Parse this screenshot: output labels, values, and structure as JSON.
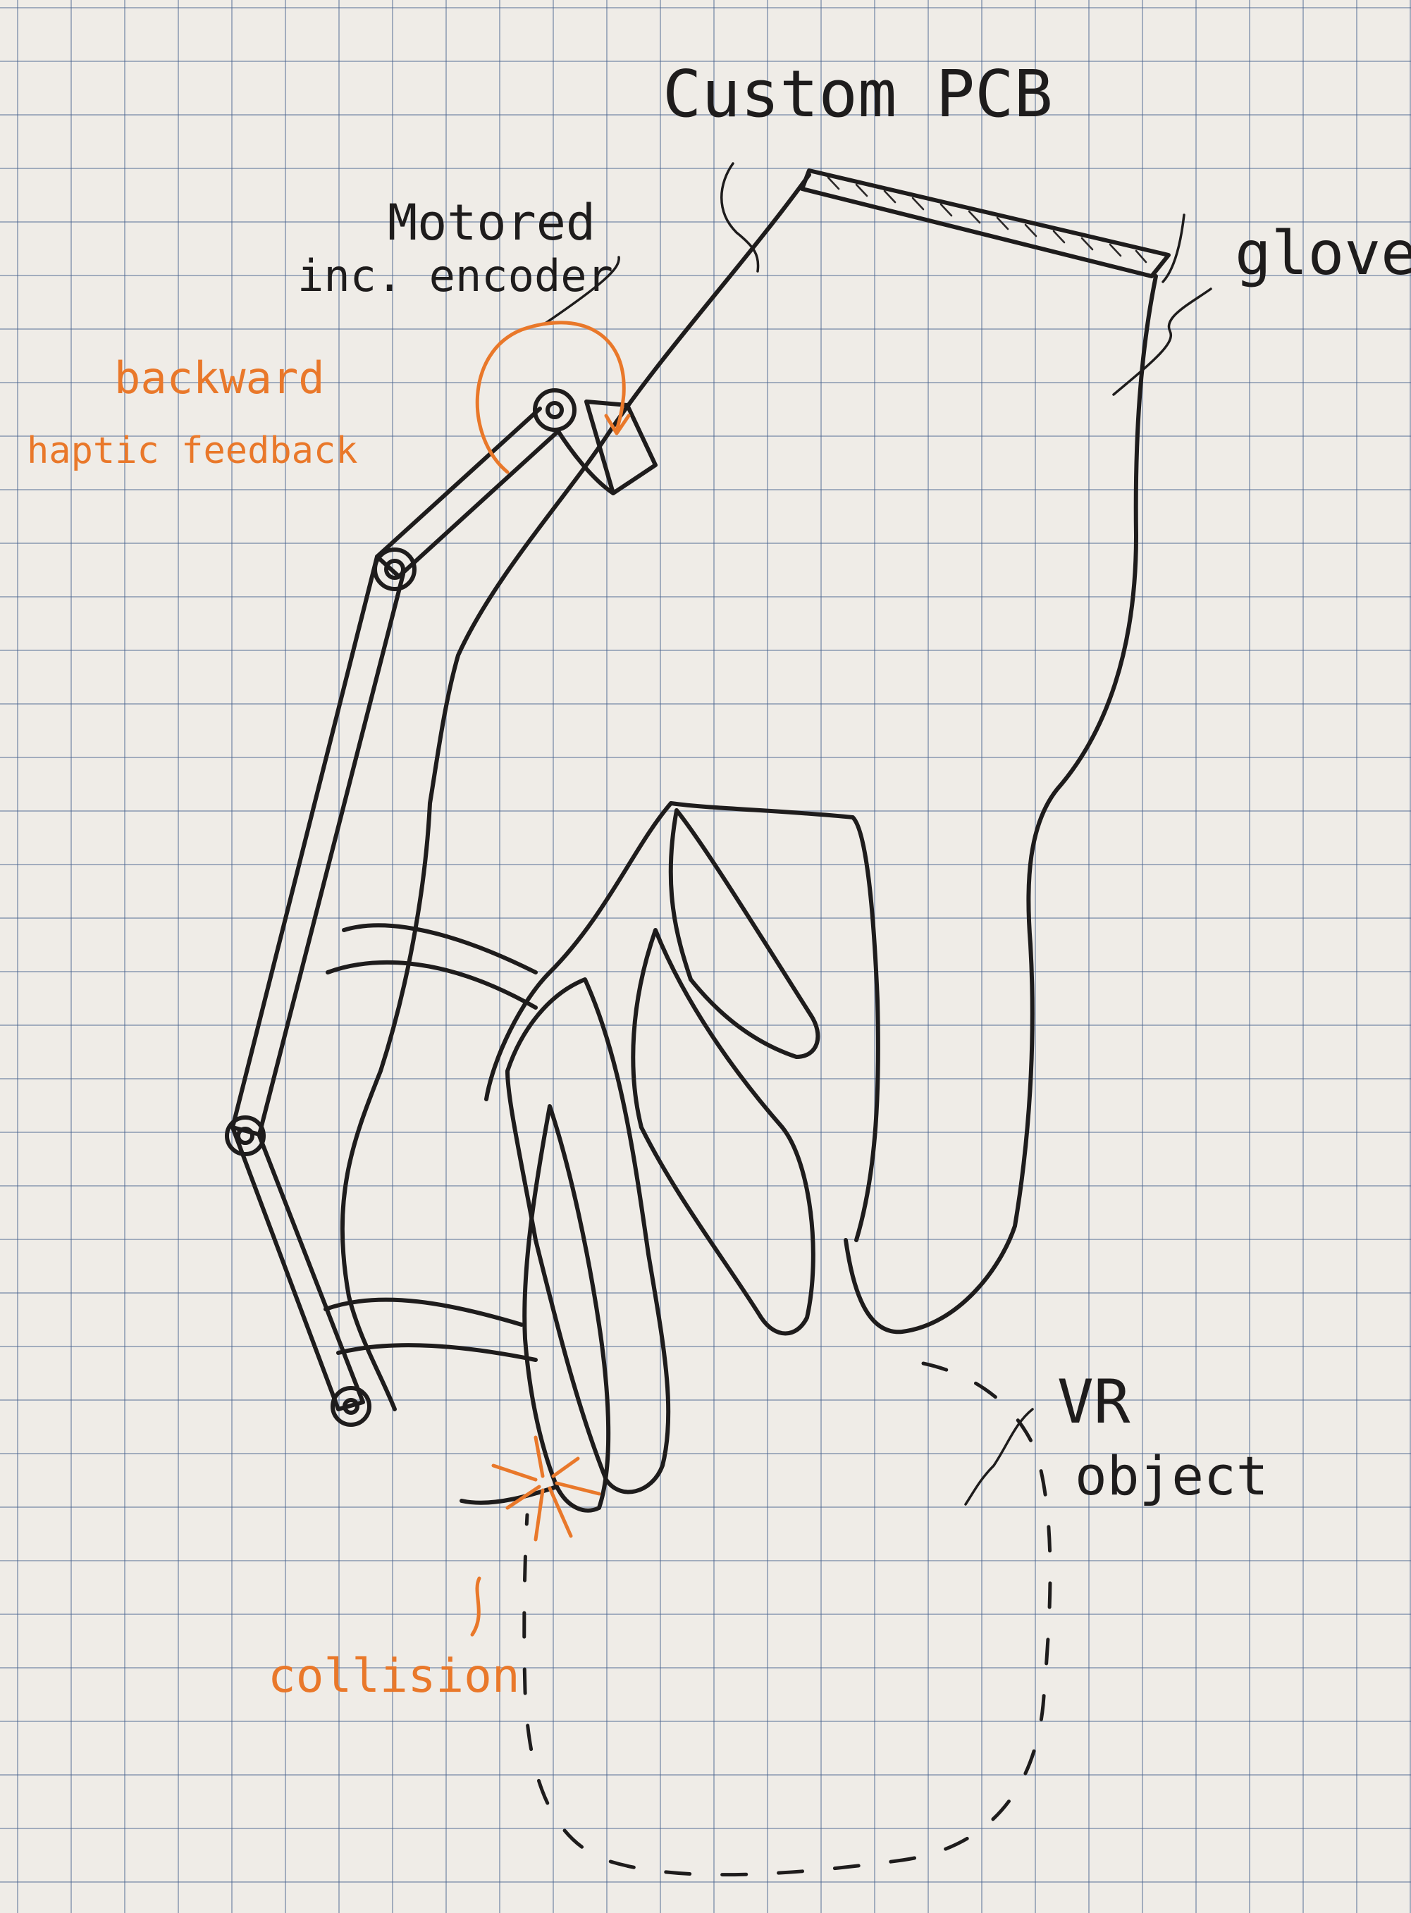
{
  "labels": {
    "custom_pcb": "Custom PCB",
    "glove": "glove",
    "motored_line1": "Motored",
    "motored_line2": "inc. encoder",
    "feedback_line1": "backward",
    "feedback_line2": "haptic feedback",
    "collision": "collision",
    "vr_line1": "VR",
    "vr_line2": "object"
  },
  "colors": {
    "ink": "#1e1c1c",
    "accent": "#e9782a",
    "paper": "#efece7",
    "grid": "#465f8c"
  }
}
